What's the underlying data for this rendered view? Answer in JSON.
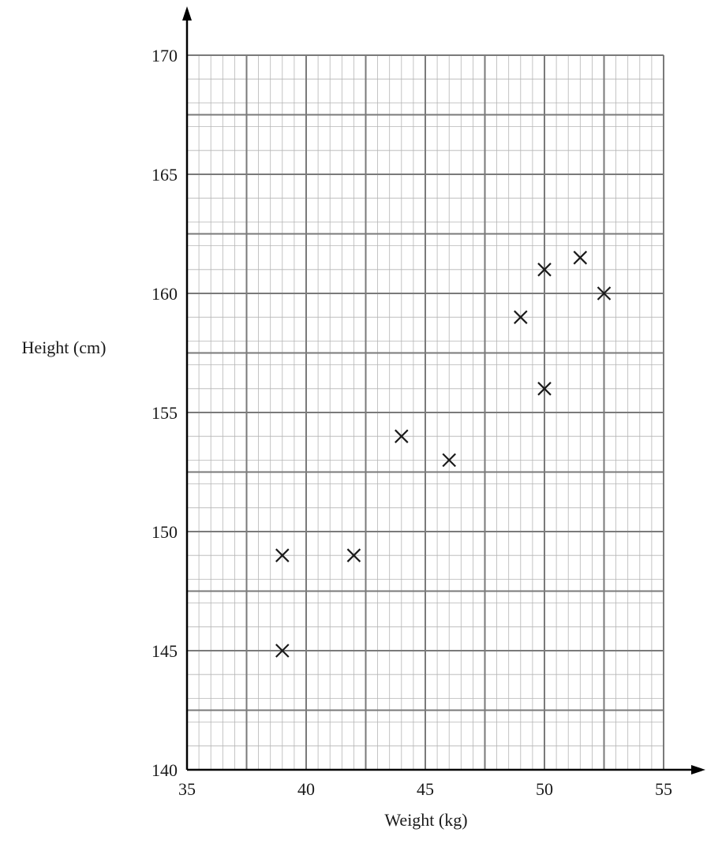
{
  "chart_data": {
    "type": "scatter",
    "title": "",
    "xlabel": "Weight (kg)",
    "ylabel": "Height (cm)",
    "xlim": [
      35,
      55
    ],
    "ylim": [
      140,
      170
    ],
    "x_ticks": [
      35,
      40,
      45,
      50,
      55
    ],
    "y_ticks": [
      140,
      145,
      150,
      155,
      160,
      165,
      170
    ],
    "x_tick_labels": [
      "35",
      "40",
      "45",
      "50",
      "55"
    ],
    "y_tick_labels": [
      "140",
      "145",
      "150",
      "155",
      "160",
      "165",
      "170"
    ],
    "grid": true,
    "marker": "cross",
    "points": [
      {
        "x": 39,
        "y": 145
      },
      {
        "x": 39,
        "y": 149
      },
      {
        "x": 42,
        "y": 149
      },
      {
        "x": 44,
        "y": 154
      },
      {
        "x": 46,
        "y": 153
      },
      {
        "x": 49,
        "y": 159
      },
      {
        "x": 50,
        "y": 161
      },
      {
        "x": 50,
        "y": 156
      },
      {
        "x": 51.5,
        "y": 161.5
      },
      {
        "x": 52.5,
        "y": 160
      }
    ],
    "colors": {
      "minor_grid": "#b5b5b5",
      "major_grid": "#7a7a7a",
      "axis": "#000000",
      "marker": "#1a1a1a"
    }
  }
}
